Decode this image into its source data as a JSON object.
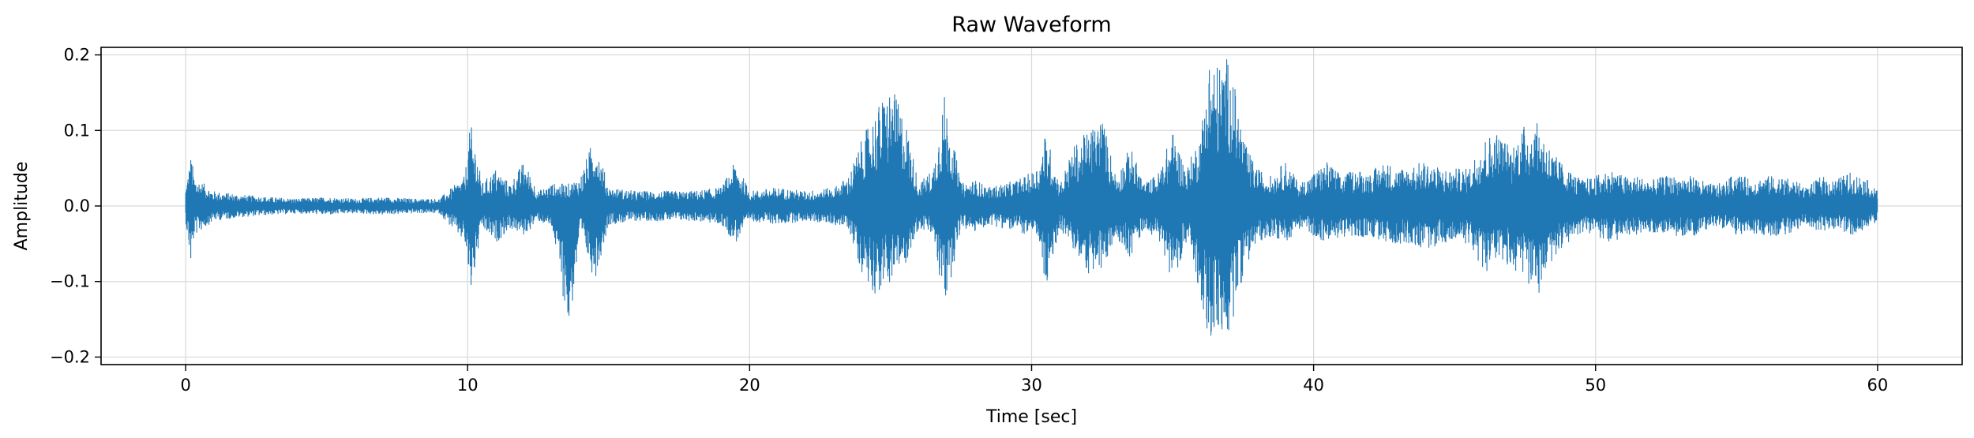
{
  "chart_data": {
    "type": "line",
    "title": "Raw Waveform",
    "xlabel": "Time [sec]",
    "ylabel": "Amplitude",
    "xlim": [
      -3,
      63
    ],
    "ylim": [
      -0.21,
      0.21
    ],
    "xticks": [
      0,
      10,
      20,
      30,
      40,
      50,
      60
    ],
    "xtick_labels": [
      "0",
      "10",
      "20",
      "30",
      "40",
      "50",
      "60"
    ],
    "yticks": [
      -0.2,
      -0.1,
      0.0,
      0.1,
      0.2
    ],
    "ytick_labels": [
      "−0.2",
      "−0.1",
      "0.0",
      "0.1",
      "0.2"
    ],
    "grid": true,
    "color": "#1f77b4",
    "series": [
      {
        "x_start": 0,
        "x_end": 60,
        "envelope": {
          "x": [
            0.0,
            0.2,
            0.3,
            1.0,
            2.0,
            3.0,
            4.0,
            5.0,
            6.0,
            7.0,
            8.0,
            9.0,
            9.9,
            10.1,
            10.3,
            10.5,
            11.0,
            11.5,
            12.0,
            12.5,
            13.0,
            13.6,
            14.0,
            14.5,
            15.0,
            16.0,
            17.0,
            18.0,
            19.0,
            19.5,
            20.0,
            21.0,
            22.0,
            23.0,
            23.5,
            24.0,
            24.5,
            25.0,
            25.5,
            26.0,
            26.5,
            26.9,
            27.5,
            28.0,
            28.5,
            29.0,
            29.5,
            30.0,
            30.3,
            30.5,
            31.0,
            31.5,
            32.0,
            32.5,
            33.0,
            33.5,
            34.0,
            34.5,
            35.0,
            35.5,
            36.0,
            36.3,
            36.6,
            37.0,
            37.3,
            37.6,
            38.0,
            38.5,
            39.0,
            39.5,
            40.0,
            40.5,
            41.0,
            41.5,
            42.0,
            42.5,
            43.0,
            43.5,
            44.0,
            44.5,
            45.0,
            45.5,
            46.0,
            46.5,
            47.0,
            47.5,
            48.0,
            48.5,
            49.0,
            49.5,
            50.0,
            50.5,
            51.0,
            51.5,
            52.0,
            52.5,
            53.0,
            53.5,
            54.0,
            54.5,
            55.0,
            55.5,
            56.0,
            56.5,
            57.0,
            57.5,
            58.0,
            58.5,
            59.0,
            59.5,
            60.0
          ],
          "max": [
            0.025,
            0.07,
            0.04,
            0.02,
            0.015,
            0.012,
            0.01,
            0.012,
            0.01,
            0.012,
            0.01,
            0.01,
            0.04,
            0.11,
            0.08,
            0.03,
            0.05,
            0.03,
            0.06,
            0.02,
            0.03,
            0.03,
            0.04,
            0.095,
            0.025,
            0.02,
            0.02,
            0.02,
            0.025,
            0.06,
            0.02,
            0.025,
            0.02,
            0.025,
            0.04,
            0.09,
            0.13,
            0.16,
            0.12,
            0.03,
            0.05,
            0.15,
            0.03,
            0.035,
            0.025,
            0.03,
            0.035,
            0.045,
            0.06,
            0.1,
            0.03,
            0.08,
            0.1,
            0.12,
            0.04,
            0.08,
            0.03,
            0.045,
            0.1,
            0.05,
            0.1,
            0.2,
            0.19,
            0.2,
            0.14,
            0.08,
            0.05,
            0.04,
            0.06,
            0.03,
            0.045,
            0.06,
            0.04,
            0.05,
            0.045,
            0.06,
            0.05,
            0.055,
            0.06,
            0.05,
            0.05,
            0.05,
            0.09,
            0.1,
            0.08,
            0.11,
            0.11,
            0.07,
            0.05,
            0.035,
            0.04,
            0.05,
            0.04,
            0.04,
            0.035,
            0.04,
            0.04,
            0.04,
            0.03,
            0.03,
            0.045,
            0.035,
            0.04,
            0.04,
            0.035,
            0.025,
            0.04,
            0.035,
            0.045,
            0.04,
            0.02
          ],
          "min": [
            -0.02,
            -0.085,
            -0.04,
            -0.02,
            -0.015,
            -0.012,
            -0.01,
            -0.012,
            -0.01,
            -0.012,
            -0.01,
            -0.01,
            -0.05,
            -0.12,
            -0.08,
            -0.03,
            -0.05,
            -0.03,
            -0.04,
            -0.02,
            -0.03,
            -0.17,
            -0.04,
            -0.1,
            -0.025,
            -0.02,
            -0.02,
            -0.02,
            -0.025,
            -0.05,
            -0.02,
            -0.025,
            -0.02,
            -0.025,
            -0.03,
            -0.09,
            -0.12,
            -0.1,
            -0.08,
            -0.03,
            -0.04,
            -0.14,
            -0.03,
            -0.035,
            -0.025,
            -0.03,
            -0.035,
            -0.04,
            -0.05,
            -0.12,
            -0.03,
            -0.06,
            -0.09,
            -0.09,
            -0.04,
            -0.07,
            -0.03,
            -0.045,
            -0.1,
            -0.05,
            -0.12,
            -0.19,
            -0.17,
            -0.18,
            -0.12,
            -0.08,
            -0.05,
            -0.04,
            -0.05,
            -0.03,
            -0.04,
            -0.05,
            -0.04,
            -0.045,
            -0.04,
            -0.05,
            -0.05,
            -0.05,
            -0.06,
            -0.05,
            -0.05,
            -0.05,
            -0.09,
            -0.08,
            -0.08,
            -0.1,
            -0.12,
            -0.07,
            -0.05,
            -0.035,
            -0.04,
            -0.05,
            -0.04,
            -0.04,
            -0.035,
            -0.04,
            -0.04,
            -0.04,
            -0.03,
            -0.03,
            -0.04,
            -0.035,
            -0.04,
            -0.04,
            -0.035,
            -0.025,
            -0.035,
            -0.03,
            -0.04,
            -0.035,
            -0.02
          ]
        }
      }
    ]
  }
}
